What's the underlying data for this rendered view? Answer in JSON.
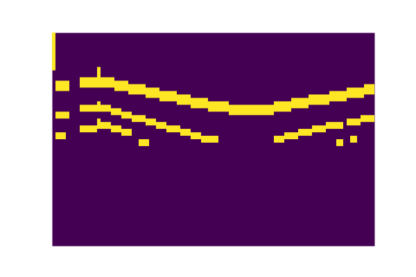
{
  "chart_data": {
    "type": "heatmap",
    "xlim": [
      0,
      93
    ],
    "ylim": [
      62,
      0
    ],
    "tick_labels": false,
    "colors": [
      "#440154",
      "#fde725"
    ],
    "cells": [
      [
        0,
        0,
        0,
        10
      ],
      [
        1,
        4,
        14,
        16
      ],
      [
        8,
        12,
        13,
        15
      ],
      [
        13,
        13,
        10,
        15
      ],
      [
        14,
        17,
        13,
        15
      ],
      [
        18,
        21,
        14,
        16
      ],
      [
        22,
        26,
        15,
        17
      ],
      [
        27,
        30,
        16,
        18
      ],
      [
        31,
        35,
        17,
        19
      ],
      [
        36,
        39,
        18,
        20
      ],
      [
        40,
        44,
        19,
        21
      ],
      [
        45,
        50,
        20,
        22
      ],
      [
        51,
        63,
        21,
        23
      ],
      [
        64,
        68,
        20,
        22
      ],
      [
        69,
        73,
        19,
        21
      ],
      [
        74,
        79,
        18,
        20
      ],
      [
        80,
        84,
        17,
        19
      ],
      [
        85,
        89,
        16,
        18
      ],
      [
        90,
        92,
        15,
        17
      ],
      [
        1,
        4,
        23,
        24
      ],
      [
        8,
        12,
        21,
        22
      ],
      [
        13,
        13,
        20,
        22
      ],
      [
        14,
        16,
        21,
        22
      ],
      [
        17,
        19,
        22,
        23
      ],
      [
        20,
        22,
        23,
        24
      ],
      [
        23,
        26,
        24,
        25
      ],
      [
        27,
        29,
        25,
        26
      ],
      [
        30,
        32,
        26,
        27
      ],
      [
        33,
        36,
        27,
        28
      ],
      [
        37,
        39,
        28,
        29
      ],
      [
        40,
        42,
        29,
        30
      ],
      [
        43,
        47,
        30,
        31
      ],
      [
        64,
        66,
        30,
        31
      ],
      [
        67,
        70,
        29,
        30
      ],
      [
        71,
        74,
        28,
        29
      ],
      [
        75,
        78,
        27,
        28
      ],
      [
        79,
        83,
        26,
        27
      ],
      [
        85,
        88,
        25,
        26
      ],
      [
        89,
        92,
        24,
        25
      ],
      [
        1,
        3,
        29,
        30
      ],
      [
        8,
        12,
        27,
        28
      ],
      [
        13,
        13,
        25,
        27
      ],
      [
        14,
        16,
        26,
        27
      ],
      [
        17,
        19,
        27,
        28
      ],
      [
        20,
        22,
        28,
        29
      ],
      [
        25,
        27,
        31,
        32
      ],
      [
        82,
        83,
        31,
        32
      ],
      [
        86,
        87,
        30,
        31
      ]
    ]
  }
}
